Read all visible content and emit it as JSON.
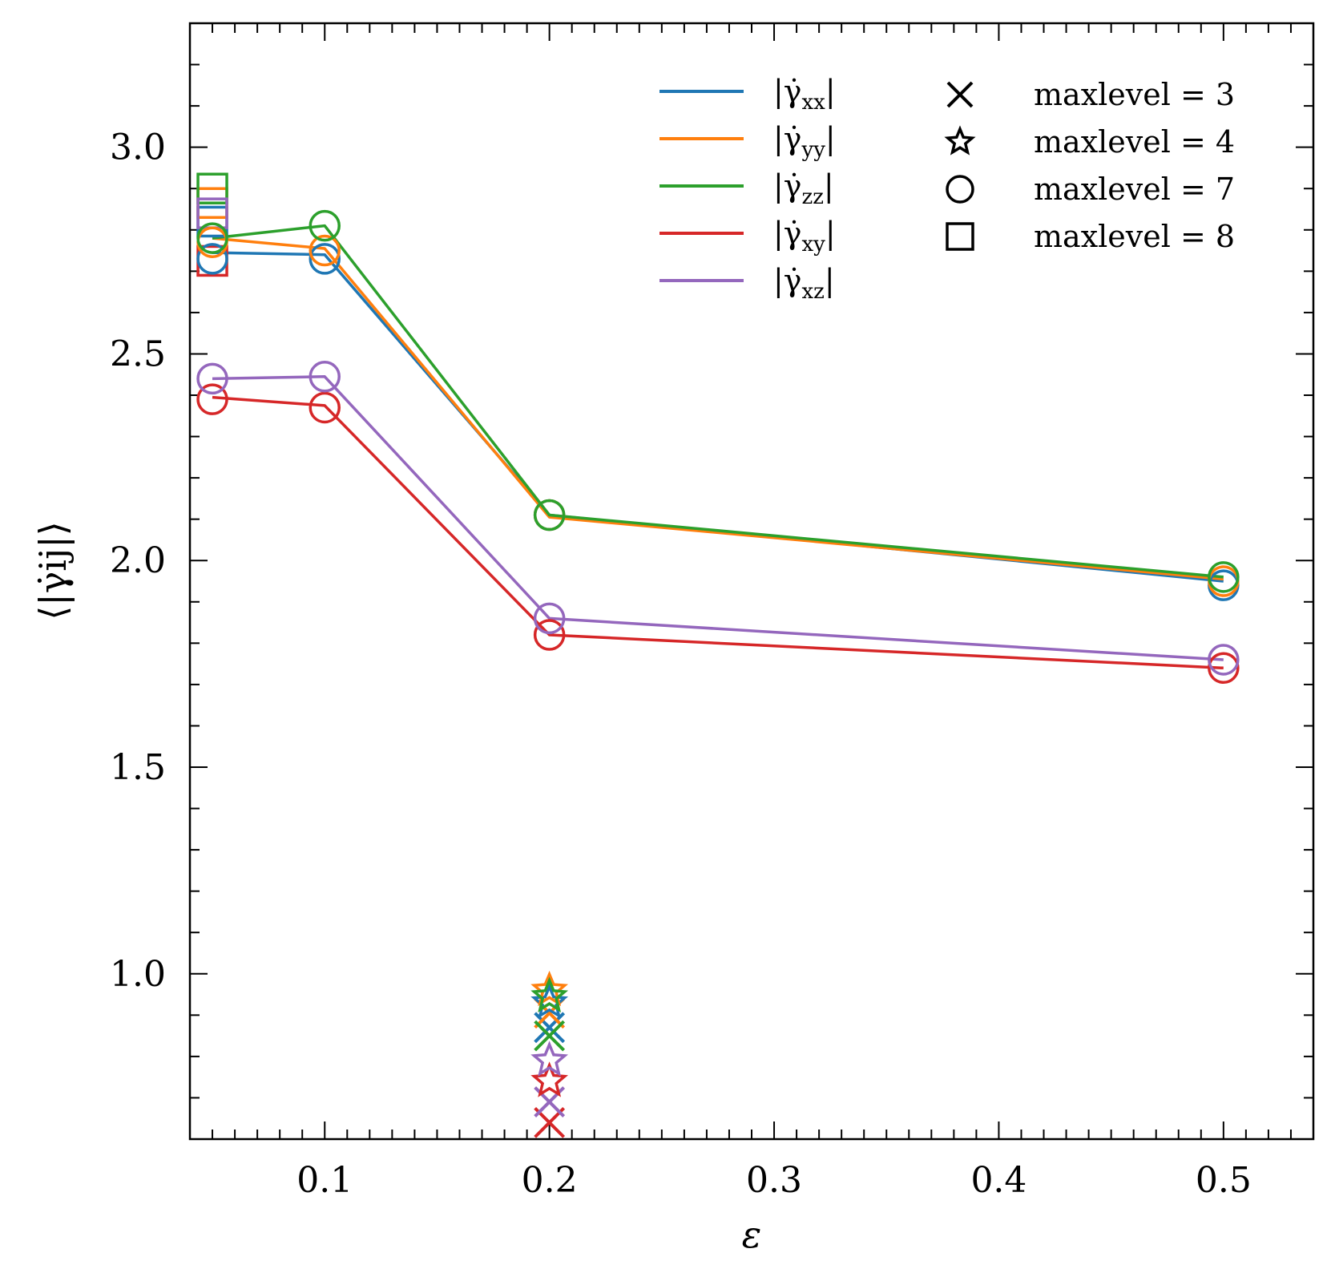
{
  "chart_data": {
    "type": "line",
    "title": "",
    "xlabel": "ε",
    "ylabel": "⟨|γ̇ij|⟩",
    "xlim": [
      0.04,
      0.54
    ],
    "ylim": [
      0.6,
      3.3
    ],
    "x_ticks": [
      0.1,
      0.2,
      0.3,
      0.4,
      0.5
    ],
    "x_tick_labels": [
      "0.1",
      "0.2",
      "0.3",
      "0.4",
      "0.5"
    ],
    "y_ticks": [
      1.0,
      1.5,
      2.0,
      2.5,
      3.0
    ],
    "y_tick_labels": [
      "1.0",
      "1.5",
      "2.0",
      "2.5",
      "3.0"
    ],
    "grid": false,
    "legend_position": "top-right",
    "colors": {
      "xx": "#1f77b4",
      "yy": "#ff7f0e",
      "zz": "#2ca02c",
      "xy": "#d62728",
      "xz": "#9467bd"
    },
    "series": [
      {
        "key": "xx",
        "name": "|γ̇xx|",
        "name_main": "|γ̇",
        "name_sub": "xx",
        "name_end": "|",
        "color": "#1f77b4",
        "line": {
          "x": [
            0.05,
            0.1,
            0.2,
            0.5
          ],
          "y": [
            2.745,
            2.74,
            2.11,
            1.95
          ]
        },
        "maxlevel7": {
          "x": [
            0.05,
            0.1,
            0.2,
            0.5
          ],
          "y": [
            2.73,
            2.73,
            2.11,
            1.94
          ]
        },
        "maxlevel8": {
          "x": [
            0.05
          ],
          "y": [
            2.82
          ]
        },
        "maxlevel4": {
          "x": [
            0.2
          ],
          "y": [
            0.93
          ]
        },
        "maxlevel3": {
          "x": [
            0.2
          ],
          "y": [
            0.87
          ]
        }
      },
      {
        "key": "yy",
        "name": "|γ̇yy|",
        "name_main": "|γ̇",
        "name_sub": "yy",
        "name_end": "|",
        "color": "#ff7f0e",
        "line": {
          "x": [
            0.05,
            0.1,
            0.2,
            0.5
          ],
          "y": [
            2.78,
            2.755,
            2.105,
            1.955
          ]
        },
        "maxlevel7": {
          "x": [
            0.05,
            0.1,
            0.2,
            0.5
          ],
          "y": [
            2.77,
            2.75,
            2.11,
            1.95
          ]
        },
        "maxlevel8": {
          "x": [
            0.05
          ],
          "y": [
            2.865
          ]
        },
        "maxlevel4": {
          "x": [
            0.2
          ],
          "y": [
            0.96
          ]
        },
        "maxlevel3": {
          "x": [
            0.2
          ],
          "y": [
            0.905
          ]
        }
      },
      {
        "key": "zz",
        "name": "|γ̇zz|",
        "name_main": "|γ̇",
        "name_sub": "zz",
        "name_end": "|",
        "color": "#2ca02c",
        "line": {
          "x": [
            0.05,
            0.1,
            0.2,
            0.5
          ],
          "y": [
            2.78,
            2.81,
            2.11,
            1.96
          ]
        },
        "maxlevel7": {
          "x": [
            0.05,
            0.1,
            0.2,
            0.5
          ],
          "y": [
            2.78,
            2.81,
            2.11,
            1.96
          ]
        },
        "maxlevel8": {
          "x": [
            0.05
          ],
          "y": [
            2.9
          ]
        },
        "maxlevel4": {
          "x": [
            0.2
          ],
          "y": [
            0.945
          ]
        },
        "maxlevel3": {
          "x": [
            0.2
          ],
          "y": [
            0.85
          ]
        }
      },
      {
        "key": "xy",
        "name": "|γ̇xy|",
        "name_main": "|γ̇",
        "name_sub": "xy",
        "name_end": "|",
        "color": "#d62728",
        "line": {
          "x": [
            0.05,
            0.1,
            0.2,
            0.5
          ],
          "y": [
            2.395,
            2.375,
            1.82,
            1.74
          ]
        },
        "maxlevel7": {
          "x": [
            0.05,
            0.1,
            0.2,
            0.5
          ],
          "y": [
            2.39,
            2.37,
            1.82,
            1.74
          ]
        },
        "maxlevel8": {
          "x": [
            0.05
          ],
          "y": [
            2.725
          ]
        },
        "maxlevel4": {
          "x": [
            0.2
          ],
          "y": [
            0.74
          ]
        },
        "maxlevel3": {
          "x": [
            0.2
          ],
          "y": [
            0.64
          ]
        }
      },
      {
        "key": "xz",
        "name": "|γ̇xz|",
        "name_main": "|γ̇",
        "name_sub": "xz",
        "name_end": "|",
        "color": "#9467bd",
        "line": {
          "x": [
            0.05,
            0.1,
            0.2,
            0.5
          ],
          "y": [
            2.44,
            2.445,
            1.86,
            1.76
          ]
        },
        "maxlevel7": {
          "x": [
            0.05,
            0.1,
            0.2,
            0.5
          ],
          "y": [
            2.44,
            2.445,
            1.86,
            1.76
          ]
        },
        "maxlevel8": {
          "x": [
            0.05
          ],
          "y": [
            2.84
          ]
        },
        "maxlevel4": {
          "x": [
            0.2
          ],
          "y": [
            0.79
          ]
        },
        "maxlevel3": {
          "x": [
            0.2
          ],
          "y": [
            0.69
          ]
        }
      }
    ],
    "marker_legend": [
      {
        "marker": "x",
        "label": "maxlevel = 3"
      },
      {
        "marker": "star",
        "label": "maxlevel = 4"
      },
      {
        "marker": "circle",
        "label": "maxlevel = 7"
      },
      {
        "marker": "square",
        "label": "maxlevel = 8"
      }
    ]
  }
}
